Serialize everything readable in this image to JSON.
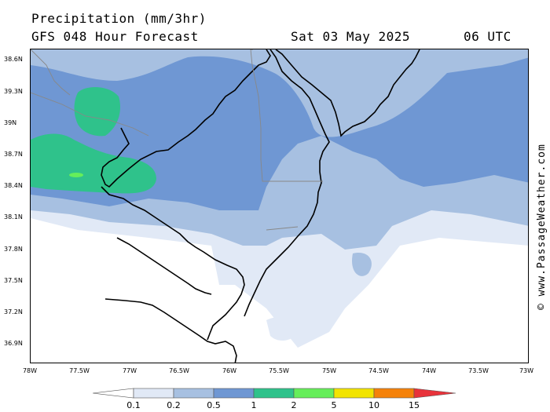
{
  "header": {
    "title": "Precipitation (mm/3hr)",
    "subtitle": "GFS 048 Hour Forecast",
    "date": "Sat 03 May 2025",
    "time": "06 UTC"
  },
  "watermark": "© www.PassageWeather.com",
  "axes": {
    "lat_labels": [
      "38.6N",
      "39.3N",
      "39N",
      "38.7N",
      "38.4N",
      "38.1N",
      "37.8N",
      "37.5N",
      "37.2N",
      "36.9N"
    ],
    "lon_labels": [
      "78W",
      "77.5W",
      "77W",
      "76.5W",
      "76W",
      "75.5W",
      "75W",
      "74.5W",
      "74W",
      "73.5W",
      "73W"
    ]
  },
  "legend": {
    "ticks": [
      "0.1",
      "0.2",
      "0.5",
      "1",
      "2",
      "5",
      "10",
      "15"
    ],
    "colors": [
      "#ffffff",
      "#e1e9f6",
      "#a7c0e1",
      "#6f97d3",
      "#2fc28b",
      "#66ee5a",
      "#f2e400",
      "#f5820a",
      "#e8333b"
    ]
  }
}
